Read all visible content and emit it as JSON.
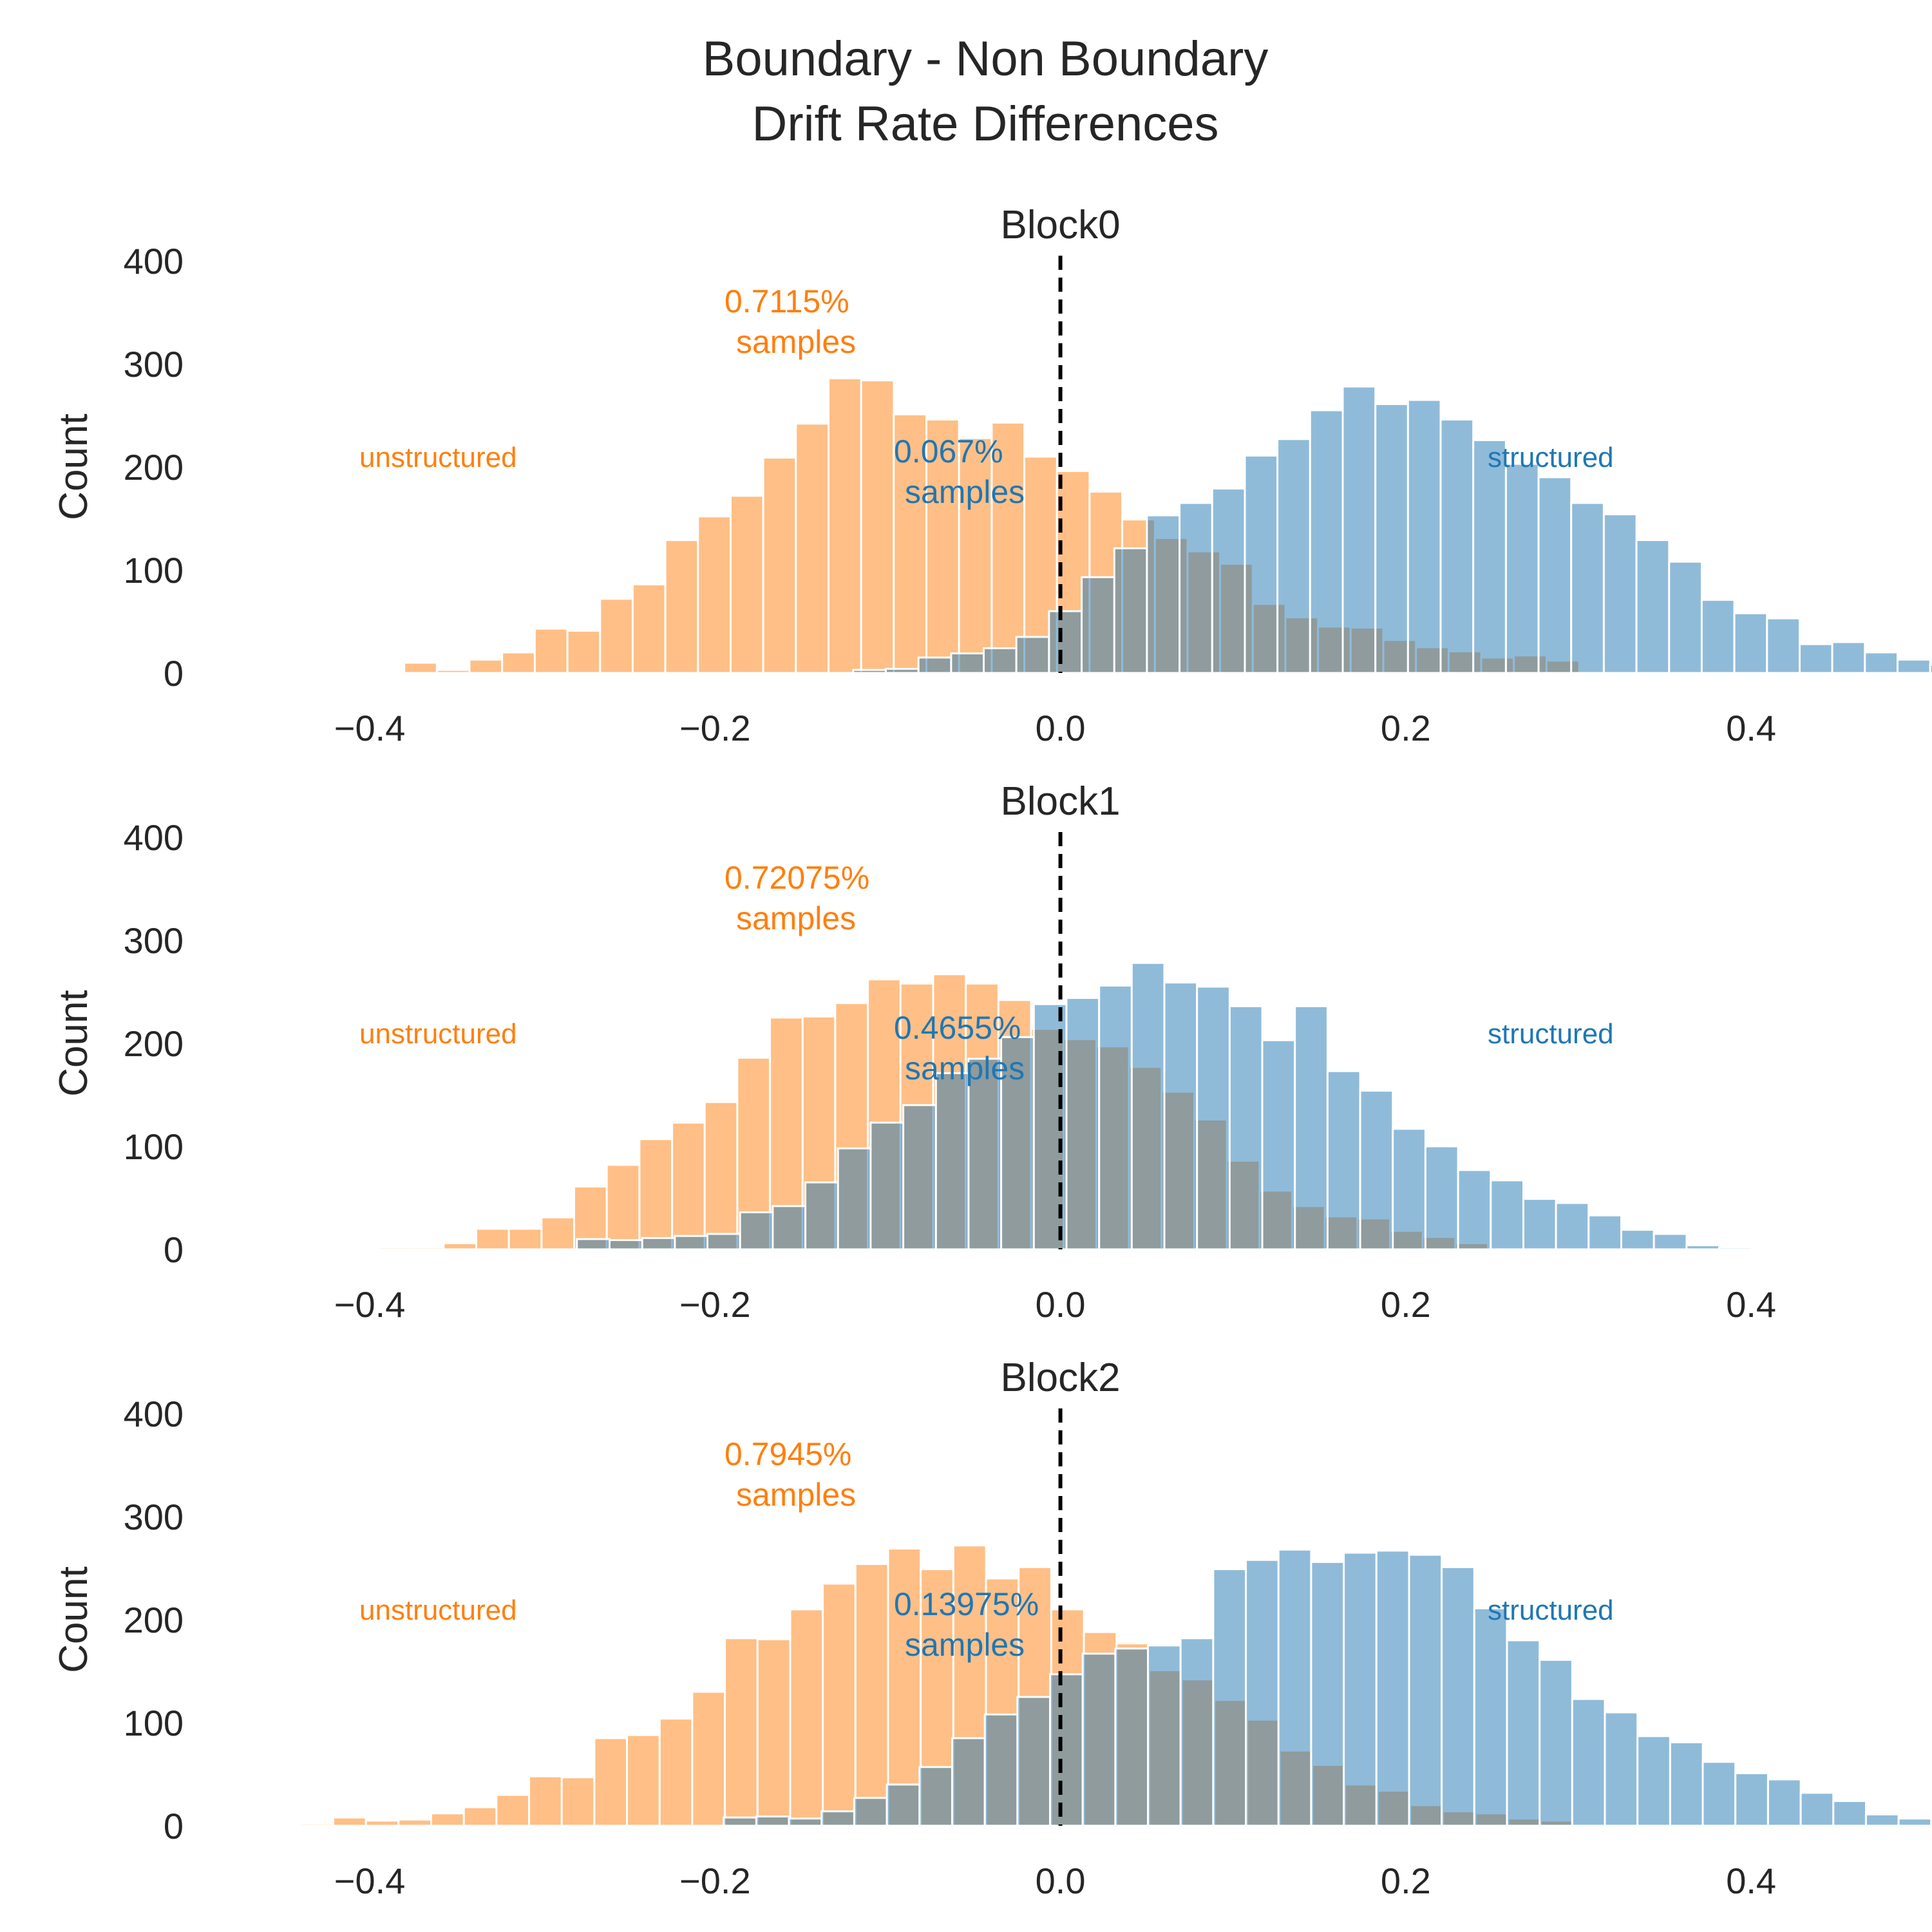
{
  "figure": {
    "title_line1": "Boundary - Non Boundary",
    "title_line2": "Drift Rate Differences"
  },
  "colors": {
    "structured": "#1f77b4",
    "unstructured": "#ff7f0e",
    "threshold_line": "#000000"
  },
  "chart_data": [
    {
      "type": "histogram",
      "title": "Block0",
      "xlabel": "",
      "ylabel": "Count",
      "xlim": [
        -0.45,
        0.46
      ],
      "ylim": [
        0,
        400
      ],
      "xticks": [
        -0.4,
        -0.2,
        0.0,
        0.2,
        0.4
      ],
      "xtick_labels": [
        "−0.4",
        "−0.2",
        "0.0",
        "0.2",
        "0.4"
      ],
      "yticks": [
        0,
        100,
        200,
        300,
        400
      ],
      "ytick_labels": [
        "0",
        "100",
        "200",
        "300",
        "400"
      ],
      "grid": false,
      "vline_x": 0.0,
      "series": [
        {
          "name": "unstructured",
          "color": "#ff7f0e",
          "bin_start": -0.38,
          "bin_width": 0.0189,
          "counts": [
            10,
            3,
            13,
            20,
            43,
            41,
            72,
            86,
            129,
            152,
            172,
            209,
            242,
            286,
            284,
            251,
            246,
            228,
            243,
            210,
            196,
            176,
            149,
            131,
            118,
            106,
            67,
            54,
            45,
            44,
            32,
            25,
            21,
            15,
            17,
            12
          ]
        },
        {
          "name": "structured",
          "color": "#1f77b4",
          "bin_start": -0.12,
          "bin_width": 0.0189,
          "counts": [
            3,
            4,
            15,
            19,
            24,
            35,
            60,
            93,
            121,
            153,
            165,
            179,
            211,
            227,
            255,
            278,
            261,
            265,
            246,
            226,
            203,
            190,
            165,
            154,
            129,
            108,
            71,
            58,
            53,
            28,
            30,
            20,
            13,
            8,
            8,
            3,
            2
          ]
        }
      ],
      "annotations": [
        {
          "line1": "0.7115%",
          "line2": "samples",
          "series": "unstructured"
        },
        {
          "line1": "0.067%",
          "line2": "samples",
          "series": "structured"
        }
      ],
      "labels": {
        "left": "unstructured",
        "right": "structured"
      }
    },
    {
      "type": "histogram",
      "title": "Block1",
      "xlabel": "",
      "ylabel": "Count",
      "xlim": [
        -0.45,
        0.46
      ],
      "ylim": [
        0,
        400
      ],
      "xticks": [
        -0.4,
        -0.2,
        0.0,
        0.2,
        0.4
      ],
      "xtick_labels": [
        "−0.4",
        "−0.2",
        "0.0",
        "0.2",
        "0.4"
      ],
      "yticks": [
        0,
        100,
        200,
        300,
        400
      ],
      "ytick_labels": [
        "0",
        "100",
        "200",
        "300",
        "400"
      ],
      "grid": false,
      "vline_x": 0.0,
      "series": [
        {
          "name": "unstructured",
          "color": "#ff7f0e",
          "bin_start": -0.395,
          "bin_width": 0.0189,
          "counts": [
            2,
            2,
            6,
            20,
            20,
            31,
            61,
            82,
            107,
            123,
            143,
            186,
            225,
            226,
            239,
            262,
            258,
            267,
            258,
            242,
            214,
            204,
            197,
            177,
            153,
            126,
            86,
            57,
            42,
            32,
            30,
            18,
            12,
            6
          ]
        },
        {
          "name": "structured",
          "color": "#1f77b4",
          "bin_start": -0.28,
          "bin_width": 0.0189,
          "counts": [
            10,
            9,
            11,
            13,
            15,
            36,
            42,
            65,
            98,
            123,
            140,
            171,
            185,
            206,
            238,
            244,
            256,
            278,
            259,
            255,
            236,
            203,
            236,
            173,
            154,
            117,
            100,
            77,
            67,
            49,
            45,
            33,
            19,
            15,
            4,
            2
          ]
        }
      ],
      "annotations": [
        {
          "line1": "0.72075%",
          "line2": "samples",
          "series": "unstructured"
        },
        {
          "line1": "0.4655%",
          "line2": "samples",
          "series": "structured"
        }
      ],
      "labels": {
        "left": "unstructured",
        "right": "structured"
      }
    },
    {
      "type": "histogram",
      "title": "Block2",
      "xlabel": "",
      "ylabel": "Count",
      "xlim": [
        -0.45,
        0.46
      ],
      "ylim": [
        0,
        400
      ],
      "xticks": [
        -0.4,
        -0.2,
        0.0,
        0.2,
        0.4
      ],
      "xtick_labels": [
        "−0.4",
        "−0.2",
        "0.0",
        "0.2",
        "0.4"
      ],
      "yticks": [
        0,
        100,
        200,
        300,
        400
      ],
      "ytick_labels": [
        "0",
        "100",
        "200",
        "300",
        "400"
      ],
      "grid": false,
      "vline_x": 0.0,
      "series": [
        {
          "name": "unstructured",
          "color": "#ff7f0e",
          "bin_start": -0.44,
          "bin_width": 0.0189,
          "counts": [
            2,
            8,
            5,
            6,
            12,
            18,
            30,
            48,
            47,
            85,
            88,
            104,
            130,
            182,
            181,
            210,
            235,
            254,
            269,
            249,
            272,
            240,
            251,
            210,
            188,
            177,
            151,
            142,
            122,
            103,
            73,
            59,
            40,
            34,
            20,
            14,
            12,
            7,
            5
          ]
        },
        {
          "name": "structured",
          "color": "#1f77b4",
          "bin_start": -0.195,
          "bin_width": 0.0189,
          "counts": [
            8,
            9,
            7,
            14,
            27,
            40,
            57,
            85,
            108,
            125,
            147,
            167,
            172,
            175,
            182,
            249,
            258,
            268,
            256,
            265,
            267,
            263,
            251,
            211,
            180,
            161,
            123,
            110,
            87,
            81,
            62,
            51,
            45,
            32,
            24,
            11,
            7,
            4
          ]
        }
      ],
      "annotations": [
        {
          "line1": "0.7945%",
          "line2": "samples",
          "series": "unstructured"
        },
        {
          "line1": "0.13975%",
          "line2": "samples",
          "series": "structured"
        }
      ],
      "labels": {
        "left": "unstructured",
        "right": "structured"
      }
    }
  ]
}
